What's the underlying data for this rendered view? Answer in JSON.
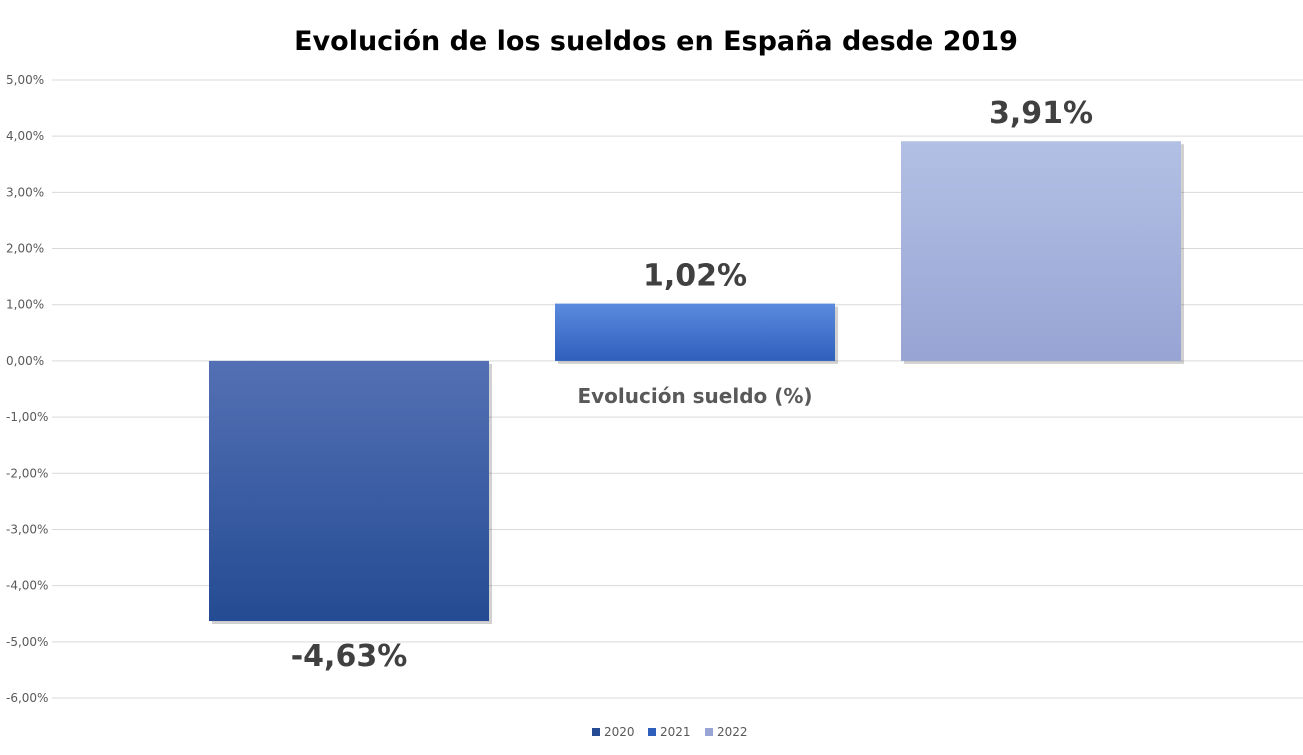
{
  "chart_data": {
    "type": "bar",
    "title": "Evolución de los sueldos en España desde 2019",
    "category_label": "Evolución sueldo (%)",
    "xlabel": "",
    "ylabel": "",
    "ylim": [
      -6,
      5
    ],
    "yticks": [
      "5,00%",
      "4,00%",
      "3,00%",
      "2,00%",
      "1,00%",
      "0,00%",
      "-1,00%",
      "-2,00%",
      "-3,00%",
      "-4,00%",
      "-5,00%",
      "-6,00%"
    ],
    "ytick_values": [
      5,
      4,
      3,
      2,
      1,
      0,
      -1,
      -2,
      -3,
      -4,
      -5,
      -6
    ],
    "grid": true,
    "legend_position": "bottom",
    "series": [
      {
        "name": "2020",
        "value": -4.63,
        "label": "-4,63%",
        "color_top": "#5470b4",
        "color_bottom": "#244b93"
      },
      {
        "name": "2021",
        "value": 1.02,
        "label": "1,02%",
        "color_top": "#5b8ade",
        "color_bottom": "#2e5fbc"
      },
      {
        "name": "2022",
        "value": 3.91,
        "label": "3,91%",
        "color_top": "#b3c0e4",
        "color_bottom": "#97a4d4"
      }
    ],
    "colors": {
      "grid": "#d9d9d9",
      "tick_text": "#595959",
      "title_text": "#000000",
      "label_text": "#404040",
      "category_text": "#595959"
    }
  }
}
